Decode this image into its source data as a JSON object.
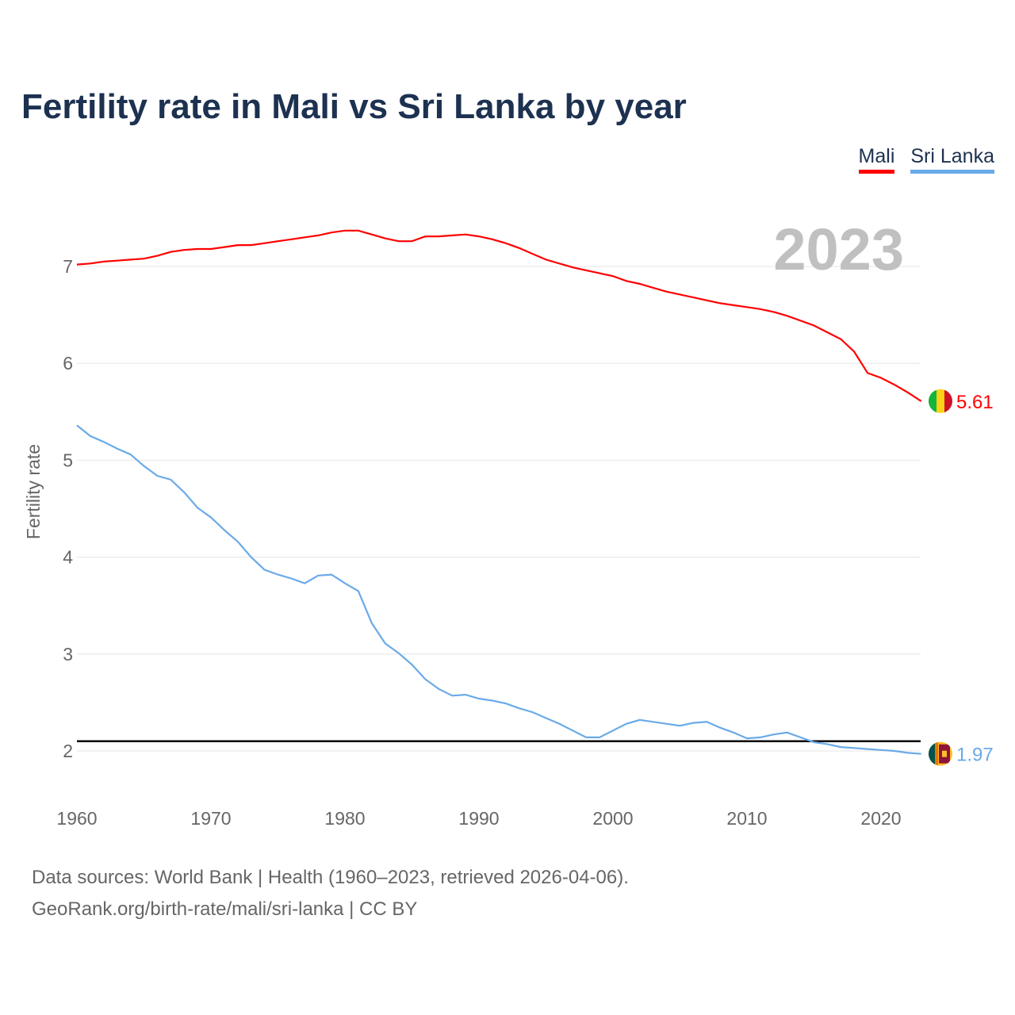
{
  "footer": {
    "line1": "Data sources: World Bank | Health (1960–2023, retrieved 2026-04-06).",
    "line2": "GeoRank.org/birth-rate/mali/sri-lanka | CC BY"
  },
  "chart_data": {
    "type": "line",
    "title": "Fertility rate in Mali vs Sri Lanka by year",
    "xlabel": "",
    "ylabel": "Fertility rate",
    "year_label": "2023",
    "xlim": [
      1960,
      2023
    ],
    "ylim": [
      1.5,
      7.6
    ],
    "x_ticks": [
      1960,
      1970,
      1980,
      1990,
      2000,
      2010,
      2020
    ],
    "y_ticks": [
      2,
      3,
      4,
      5,
      6,
      7
    ],
    "grid": true,
    "legend_position": "top-right",
    "reference_line": 2.1,
    "x": [
      1960,
      1961,
      1962,
      1963,
      1964,
      1965,
      1966,
      1967,
      1968,
      1969,
      1970,
      1971,
      1972,
      1973,
      1974,
      1975,
      1976,
      1977,
      1978,
      1979,
      1980,
      1981,
      1982,
      1983,
      1984,
      1985,
      1986,
      1987,
      1988,
      1989,
      1990,
      1991,
      1992,
      1993,
      1994,
      1995,
      1996,
      1997,
      1998,
      1999,
      2000,
      2001,
      2002,
      2003,
      2004,
      2005,
      2006,
      2007,
      2008,
      2009,
      2010,
      2011,
      2012,
      2013,
      2014,
      2015,
      2016,
      2017,
      2018,
      2019,
      2020,
      2021,
      2022,
      2023
    ],
    "series": [
      {
        "name": "Mali",
        "color": "#ff0000",
        "end_label": "5.61",
        "values": [
          7.02,
          7.03,
          7.05,
          7.06,
          7.07,
          7.08,
          7.11,
          7.15,
          7.17,
          7.18,
          7.18,
          7.2,
          7.22,
          7.22,
          7.24,
          7.26,
          7.28,
          7.3,
          7.32,
          7.35,
          7.37,
          7.37,
          7.33,
          7.29,
          7.26,
          7.26,
          7.31,
          7.31,
          7.32,
          7.33,
          7.31,
          7.28,
          7.24,
          7.19,
          7.13,
          7.07,
          7.03,
          6.99,
          6.96,
          6.93,
          6.9,
          6.85,
          6.82,
          6.78,
          6.74,
          6.71,
          6.68,
          6.65,
          6.62,
          6.6,
          6.58,
          6.56,
          6.53,
          6.49,
          6.44,
          6.39,
          6.32,
          6.25,
          6.12,
          5.9,
          5.85,
          5.78,
          5.7,
          5.61
        ]
      },
      {
        "name": "Sri Lanka",
        "color": "#6aaae8",
        "end_label": "1.97",
        "values": [
          5.36,
          5.25,
          5.19,
          5.12,
          5.06,
          4.94,
          4.84,
          4.8,
          4.67,
          4.51,
          4.41,
          4.28,
          4.16,
          4.0,
          3.87,
          3.82,
          3.78,
          3.73,
          3.81,
          3.82,
          3.73,
          3.65,
          3.32,
          3.11,
          3.01,
          2.89,
          2.74,
          2.64,
          2.57,
          2.58,
          2.54,
          2.52,
          2.49,
          2.44,
          2.4,
          2.34,
          2.28,
          2.21,
          2.14,
          2.14,
          2.21,
          2.28,
          2.32,
          2.3,
          2.28,
          2.26,
          2.29,
          2.3,
          2.24,
          2.19,
          2.13,
          2.14,
          2.17,
          2.19,
          2.14,
          2.09,
          2.07,
          2.04,
          2.03,
          2.02,
          2.01,
          2.0,
          1.98,
          1.97
        ]
      }
    ]
  }
}
